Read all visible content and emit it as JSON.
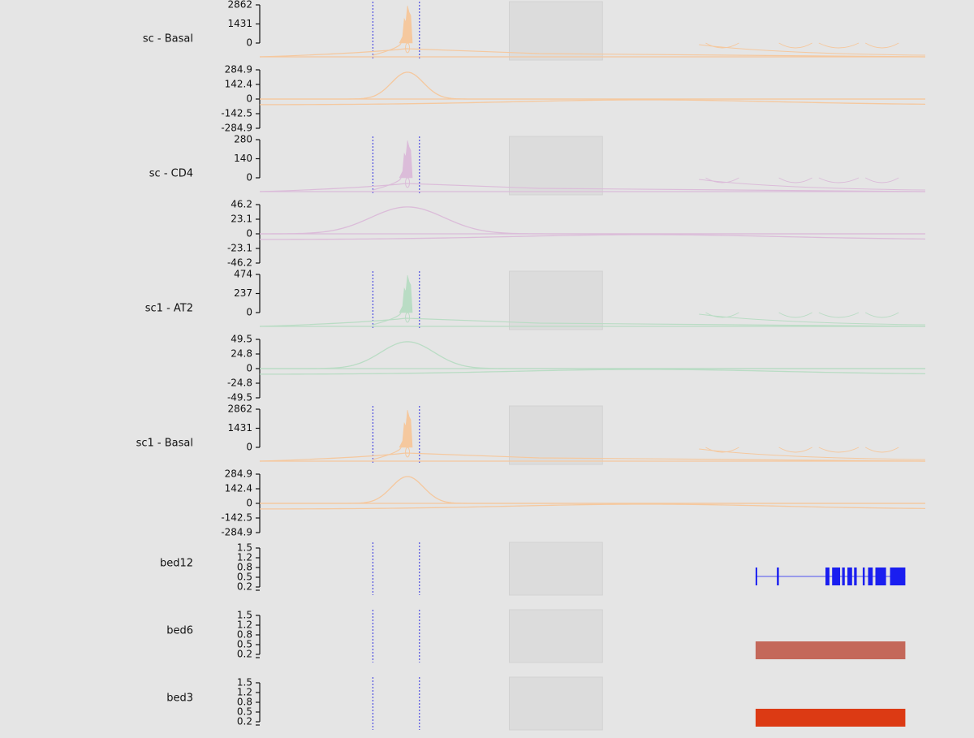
{
  "chart_data": {
    "type": "genome-tracks",
    "vlines": [
      170,
      240
    ],
    "highlight_region": [
      375,
      515
    ],
    "x_range": [
      0,
      1000
    ],
    "panels": [
      {
        "name": "sc - Basal",
        "color": "#f5c89e",
        "coverage": {
          "ticks": [
            "2862",
            "1431",
            "0"
          ],
          "max": 2862
        },
        "junction": {
          "ticks": [
            "284.9",
            "142.4",
            "0",
            "-142.5",
            "-284.9"
          ],
          "max": 284.9
        }
      },
      {
        "name": "sc - CD4",
        "color": "#dbbcd9",
        "coverage": {
          "ticks": [
            "280",
            "140",
            "0"
          ],
          "max": 280
        },
        "junction": {
          "ticks": [
            "46.2",
            "23.1",
            "0",
            "-23.1",
            "-46.2"
          ],
          "max": 46.2
        }
      },
      {
        "name": "sc1 - AT2",
        "color": "#b9dcc4",
        "coverage": {
          "ticks": [
            "474",
            "237",
            "0"
          ],
          "max": 474
        },
        "junction": {
          "ticks": [
            "49.5",
            "24.8",
            "0",
            "-24.8",
            "-49.5"
          ],
          "max": 49.5
        }
      },
      {
        "name": "sc1 - Basal",
        "color": "#f5c89e",
        "coverage": {
          "ticks": [
            "2862",
            "1431",
            "0"
          ],
          "max": 2862
        },
        "junction": {
          "ticks": [
            "284.9",
            "142.4",
            "0",
            "-142.5",
            "-284.9"
          ],
          "max": 284.9
        }
      }
    ],
    "bed_tracks": [
      {
        "name": "bed12",
        "ticks": [
          "1.5",
          "1.2",
          "0.8",
          "0.5",
          "0.2"
        ],
        "kind": "exons",
        "color": "#1a1ef0",
        "range": [
          745,
          970
        ],
        "blocks": [
          [
            745,
            747
          ],
          [
            777,
            780
          ],
          [
            850,
            856
          ],
          [
            860,
            872
          ],
          [
            875,
            879
          ],
          [
            883,
            890
          ],
          [
            893,
            897
          ],
          [
            906,
            909
          ],
          [
            914,
            921
          ],
          [
            925,
            941
          ],
          [
            947,
            970
          ]
        ]
      },
      {
        "name": "bed6",
        "ticks": [
          "1.5",
          "1.2",
          "0.8",
          "0.5",
          "0.2"
        ],
        "kind": "bar",
        "color": "#c4685a",
        "range": [
          745,
          970
        ]
      },
      {
        "name": "bed3",
        "ticks": [
          "1.5",
          "1.2",
          "0.8",
          "0.5",
          "0.2"
        ],
        "kind": "bar",
        "color": "#dc3a14",
        "range": [
          745,
          970
        ]
      }
    ]
  }
}
